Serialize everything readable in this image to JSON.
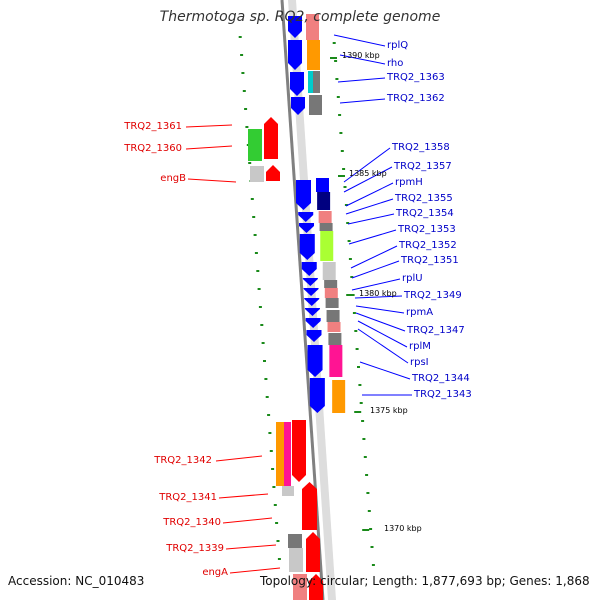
{
  "title": "Thermotoga sp. RQ2, complete genome",
  "footer": {
    "accession": "Accession: NC_010483",
    "summary": "Topology: circular; Length: 1,877,693 bp; Genes: 1,868"
  },
  "scale_labels": [
    "1390 kbp",
    "1385 kbp",
    "1380 kbp",
    "1375 kbp",
    "1370 kbp"
  ],
  "genes": {
    "left": [
      "TRQ2_1361",
      "TRQ2_1360",
      "engB",
      "TRQ2_1342",
      "TRQ2_1341",
      "TRQ2_1340",
      "TRQ2_1339",
      "engA"
    ],
    "right": [
      "rplQ",
      "rho",
      "TRQ2_1363",
      "TRQ2_1362",
      "TRQ2_1358",
      "TRQ2_1357",
      "rpmH",
      "TRQ2_1355",
      "TRQ2_1354",
      "TRQ2_1353",
      "TRQ2_1352",
      "TRQ2_1351",
      "rplU",
      "TRQ2_1349",
      "rpmA",
      "TRQ2_1347",
      "rplM",
      "rpsI",
      "TRQ2_1344",
      "TRQ2_1343"
    ]
  },
  "colors": {
    "forward": "#ff0000",
    "reverse": "#0000ff",
    "backbone": "#808080",
    "scale_tick": "#1a8a1a",
    "category_orange": "#ff9900",
    "category_salmon": "#f08080",
    "category_lime": "#aaff33",
    "category_green": "#33cc33",
    "category_navy": "#000080",
    "category_magenta": "#ff1493",
    "category_cyan": "#00cccc",
    "category_gray": "#777777",
    "category_lightgray": "#c8c8c8"
  }
}
